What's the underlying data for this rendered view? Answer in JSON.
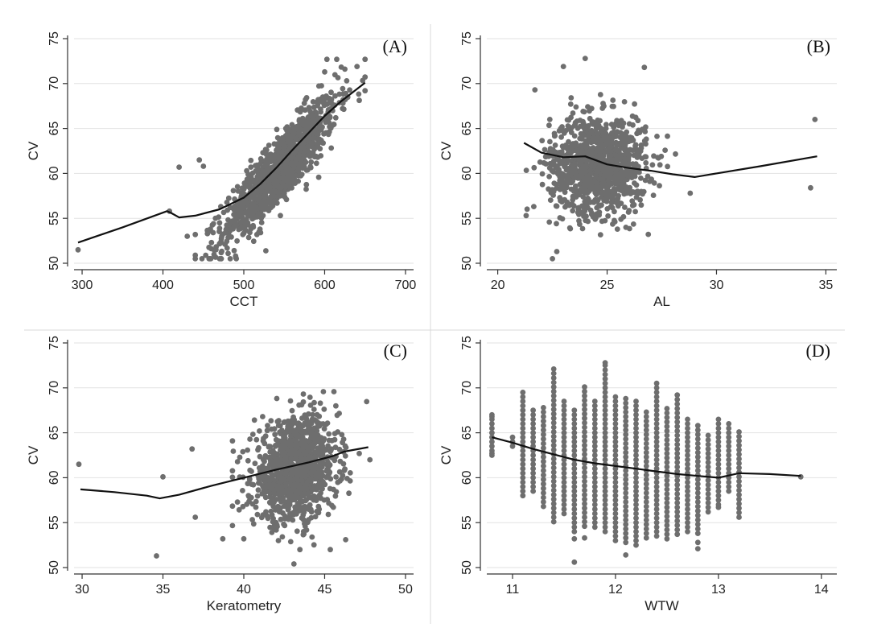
{
  "figure_colors": {
    "points": "#6e6e6e",
    "fit_line": "#111111",
    "grid": "#e2e2e2"
  },
  "chart_data": [
    {
      "id": "A",
      "type": "scatter",
      "panel_label": "(A)",
      "xlabel": "CCT",
      "ylabel": "CV",
      "xlim": [
        290,
        710
      ],
      "ylim": [
        50,
        75
      ],
      "xticks": [
        300,
        400,
        500,
        600,
        700
      ],
      "yticks": [
        50,
        55,
        60,
        65,
        70,
        75
      ],
      "grid": true,
      "cloud": {
        "n": 1100,
        "x_mean": 545,
        "x_sd": 35,
        "slope": 0.1,
        "intercept": 6.0,
        "resid_sd": 1.9,
        "x_min": 440,
        "x_max": 650,
        "y_min": 50.5,
        "y_max": 72.7
      },
      "points": [
        [
          295,
          51.5
        ],
        [
          408,
          55.8
        ],
        [
          420,
          60.7
        ],
        [
          430,
          53.0
        ],
        [
          440,
          53.2
        ],
        [
          445,
          61.5
        ],
        [
          450,
          60.8
        ],
        [
          455,
          53.3
        ],
        [
          460,
          52.3
        ],
        [
          470,
          50.5
        ],
        [
          470,
          54.5
        ],
        [
          615,
          72.7
        ],
        [
          625,
          71.6
        ],
        [
          640,
          71.9
        ],
        [
          650,
          69.2
        ],
        [
          600,
          71.3
        ]
      ],
      "trend": [
        [
          295,
          52.3
        ],
        [
          350,
          54.0
        ],
        [
          405,
          55.8
        ],
        [
          410,
          55.6
        ],
        [
          420,
          55.1
        ],
        [
          440,
          55.3
        ],
        [
          470,
          56.0
        ],
        [
          500,
          57.3
        ],
        [
          520,
          58.8
        ],
        [
          540,
          60.6
        ],
        [
          560,
          62.6
        ],
        [
          580,
          64.5
        ],
        [
          600,
          66.4
        ],
        [
          620,
          68.0
        ],
        [
          650,
          70.1
        ]
      ]
    },
    {
      "id": "B",
      "type": "scatter",
      "panel_label": "(B)",
      "xlabel": "AL",
      "ylabel": "CV",
      "xlim": [
        19.5,
        35.5
      ],
      "ylim": [
        50,
        75
      ],
      "xticks": [
        20,
        25,
        30,
        35
      ],
      "yticks": [
        50,
        55,
        60,
        65,
        70,
        75
      ],
      "grid": true,
      "cloud": {
        "n": 1100,
        "x_mean": 24.6,
        "x_sd": 1.1,
        "slope": 0,
        "intercept": 61.0,
        "resid_sd": 2.7,
        "x_min": 21.3,
        "x_max": 29.2,
        "y_min": 51.5,
        "y_max": 72.3
      },
      "points": [
        [
          22.5,
          50.5
        ],
        [
          22.7,
          51.3
        ],
        [
          24.0,
          72.8
        ],
        [
          23.0,
          71.9
        ],
        [
          26.7,
          71.8
        ],
        [
          21.7,
          69.3
        ],
        [
          28.8,
          57.8
        ],
        [
          34.5,
          66.0
        ],
        [
          34.3,
          58.4
        ]
      ],
      "trend": [
        [
          21.2,
          63.4
        ],
        [
          22.0,
          62.3
        ],
        [
          23.0,
          61.8
        ],
        [
          24.0,
          61.9
        ],
        [
          25.0,
          61.0
        ],
        [
          26.0,
          60.6
        ],
        [
          27.0,
          60.3
        ],
        [
          28.0,
          59.9
        ],
        [
          29.0,
          59.6
        ],
        [
          30.0,
          60.0
        ],
        [
          32.0,
          60.8
        ],
        [
          34.6,
          61.9
        ]
      ]
    },
    {
      "id": "C",
      "type": "scatter",
      "panel_label": "(C)",
      "xlabel": "Keratometry",
      "ylabel": "CV",
      "xlim": [
        29.5,
        50.5
      ],
      "ylim": [
        50,
        75
      ],
      "xticks": [
        30,
        35,
        40,
        45,
        50
      ],
      "yticks": [
        50,
        55,
        60,
        65,
        70,
        75
      ],
      "grid": true,
      "cloud": {
        "n": 1100,
        "x_mean": 43.2,
        "x_sd": 1.3,
        "slope": 0.35,
        "intercept": 45.7,
        "resid_sd": 2.8,
        "x_min": 39.3,
        "x_max": 47.6,
        "y_min": 52.0,
        "y_max": 72.8
      },
      "points": [
        [
          29.8,
          61.5
        ],
        [
          34.6,
          51.3
        ],
        [
          35.0,
          60.1
        ],
        [
          36.8,
          63.2
        ],
        [
          37.0,
          55.6
        ],
        [
          38.7,
          53.2
        ],
        [
          43.1,
          50.4
        ],
        [
          46.3,
          53.1
        ],
        [
          47.8,
          62.0
        ]
      ],
      "trend": [
        [
          29.9,
          58.7
        ],
        [
          32.0,
          58.4
        ],
        [
          34.0,
          58.0
        ],
        [
          34.8,
          57.7
        ],
        [
          36.0,
          58.1
        ],
        [
          38.0,
          59.1
        ],
        [
          40.0,
          60.0
        ],
        [
          42.0,
          60.9
        ],
        [
          44.0,
          61.7
        ],
        [
          45.5,
          62.4
        ],
        [
          46.2,
          62.9
        ],
        [
          47.7,
          63.4
        ]
      ]
    },
    {
      "id": "D",
      "type": "scatter",
      "panel_label": "(D)",
      "xlabel": "WTW",
      "ylabel": "CV",
      "xlim": [
        10.75,
        14.15
      ],
      "ylim": [
        50,
        75
      ],
      "xticks": [
        11,
        12,
        13,
        14
      ],
      "yticks": [
        50,
        55,
        60,
        65,
        70,
        75
      ],
      "grid": true,
      "columns": [
        {
          "x": 10.8,
          "lo": 62.5,
          "hi": 67.0
        },
        {
          "x": 11.0,
          "lo": 63.5,
          "hi": 64.3
        },
        {
          "x": 11.1,
          "lo": 58.0,
          "hi": 69.6
        },
        {
          "x": 11.2,
          "lo": 58.5,
          "hi": 67.5
        },
        {
          "x": 11.3,
          "lo": 56.8,
          "hi": 68.0
        },
        {
          "x": 11.4,
          "lo": 55.1,
          "hi": 71.9
        },
        {
          "x": 11.5,
          "lo": 56.0,
          "hi": 68.5
        },
        {
          "x": 11.6,
          "lo": 54.0,
          "hi": 67.5
        },
        {
          "x": 11.7,
          "lo": 54.6,
          "hi": 70.0
        },
        {
          "x": 11.8,
          "lo": 54.5,
          "hi": 68.3
        },
        {
          "x": 11.9,
          "lo": 54.0,
          "hi": 72.5
        },
        {
          "x": 12.0,
          "lo": 53.0,
          "hi": 69.0
        },
        {
          "x": 12.1,
          "lo": 52.8,
          "hi": 69.0
        },
        {
          "x": 12.2,
          "lo": 52.5,
          "hi": 68.5
        },
        {
          "x": 12.3,
          "lo": 53.3,
          "hi": 67.5
        },
        {
          "x": 12.4,
          "lo": 53.5,
          "hi": 70.5
        },
        {
          "x": 12.5,
          "lo": 53.2,
          "hi": 67.8
        },
        {
          "x": 12.6,
          "lo": 53.7,
          "hi": 69.0
        },
        {
          "x": 12.7,
          "lo": 54.0,
          "hi": 66.5
        },
        {
          "x": 12.8,
          "lo": 53.8,
          "hi": 66.0
        },
        {
          "x": 12.9,
          "lo": 56.2,
          "hi": 64.5
        },
        {
          "x": 13.0,
          "lo": 57.0,
          "hi": 66.5
        },
        {
          "x": 13.1,
          "lo": 58.5,
          "hi": 65.8
        },
        {
          "x": 13.2,
          "lo": 55.6,
          "hi": 65.3
        }
      ],
      "points": [
        [
          11.6,
          50.6
        ],
        [
          12.1,
          51.4
        ],
        [
          11.6,
          53.2
        ],
        [
          11.7,
          53.3
        ],
        [
          12.8,
          52.1
        ],
        [
          12.8,
          52.8
        ],
        [
          13.0,
          56.7
        ],
        [
          13.8,
          60.1
        ],
        [
          11.9,
          72.8
        ],
        [
          10.8,
          66.8
        ],
        [
          10.8,
          62.7
        ]
      ],
      "trend": [
        [
          10.8,
          64.5
        ],
        [
          11.0,
          63.9
        ],
        [
          11.2,
          63.2
        ],
        [
          11.4,
          62.6
        ],
        [
          11.6,
          62.0
        ],
        [
          11.8,
          61.6
        ],
        [
          12.0,
          61.3
        ],
        [
          12.2,
          61.0
        ],
        [
          12.4,
          60.7
        ],
        [
          12.6,
          60.4
        ],
        [
          12.8,
          60.2
        ],
        [
          13.0,
          60.0
        ],
        [
          13.2,
          60.5
        ],
        [
          13.5,
          60.4
        ],
        [
          13.8,
          60.2
        ]
      ]
    }
  ]
}
